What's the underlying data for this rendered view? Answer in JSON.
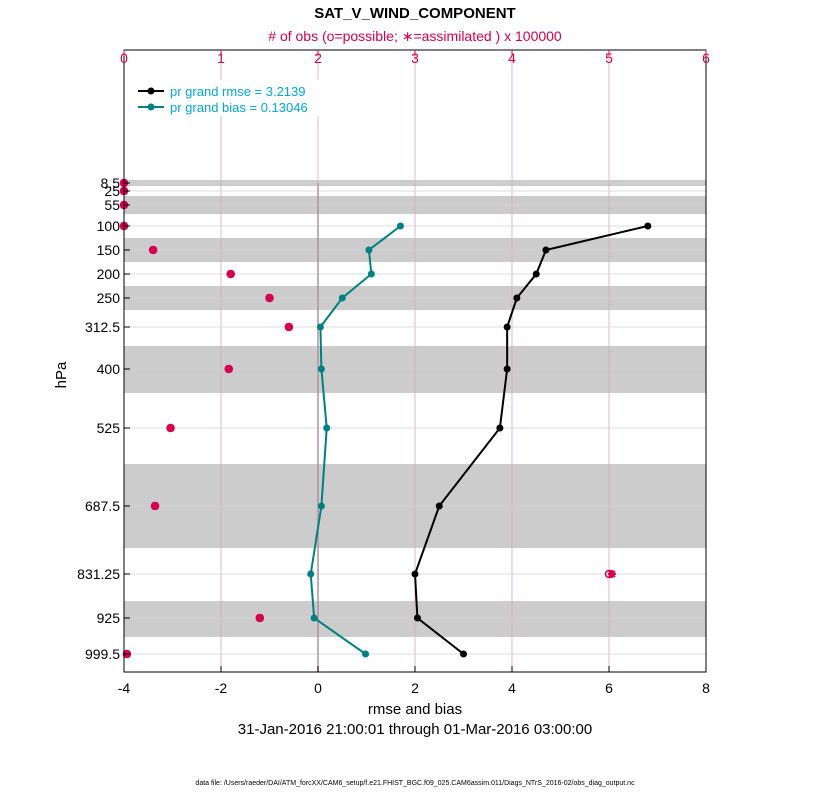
{
  "chart_data": {
    "type": "line",
    "title": "SAT_V_WIND_COMPONENT",
    "top_axis_label": "# of obs (o=possible; ∗=assimilated ) x 100000",
    "xlabel": "rmse and bias",
    "ylabel": "hPa",
    "date_range": "31-Jan-2016 21:00:01 through 01-Mar-2016 03:00:00",
    "data_file": "data file: /Users/raeder/DAI/ATM_forcXX/CAM6_setup/f.e21.FHIST_BGC.f09_025.CAM6assim.011/Diags_NTrS_2016-02/obs_diag_output.nc",
    "xlim": [
      -4,
      8
    ],
    "x_ticks": [
      "-4",
      "-2",
      "0",
      "2",
      "4",
      "6",
      "8"
    ],
    "top_xlim": [
      0,
      6
    ],
    "top_ticks": [
      "0",
      "1",
      "2",
      "3",
      "4",
      "5",
      "6"
    ],
    "y_tick_labels": [
      "8.5",
      "25",
      "55",
      "100",
      "150",
      "200",
      "250",
      "312.5",
      "400",
      "525",
      "687.5",
      "831.25",
      "925",
      "999.5"
    ],
    "levels": [
      8.5,
      25,
      55,
      100,
      150,
      200,
      250,
      312.5,
      400,
      525,
      687.5,
      831.25,
      925,
      999.5
    ],
    "series": [
      {
        "name": "pr grand rmse = 3.2139",
        "color": "#000000",
        "levels": [
          100,
          150,
          200,
          250,
          312.5,
          400,
          525,
          687.5,
          831.25,
          925,
          999.5
        ],
        "values": [
          6.8,
          4.7,
          4.5,
          4.1,
          3.9,
          3.9,
          3.75,
          2.5,
          2.0,
          2.05,
          3.0
        ]
      },
      {
        "name": "pr grand bias = 0.13046",
        "color": "#008080",
        "levels": [
          100,
          150,
          200,
          250,
          312.5,
          400,
          525,
          687.5,
          831.25,
          925,
          999.5
        ],
        "values": [
          1.7,
          1.05,
          1.1,
          0.5,
          0.05,
          0.07,
          0.18,
          0.07,
          -0.15,
          -0.08,
          0.98
        ]
      }
    ],
    "obs_count": {
      "name": "# of obs (x 100000)",
      "color": "#d6004e",
      "levels": [
        8.5,
        25,
        55,
        100,
        150,
        200,
        250,
        312.5,
        400,
        525,
        687.5,
        831.25,
        925,
        999.5
      ],
      "possible": [
        0.0,
        0.0,
        0.0,
        0.0,
        0.3,
        1.1,
        1.5,
        1.7,
        1.08,
        0.48,
        0.32,
        5.0,
        1.4,
        0.03
      ],
      "assimilated": [
        0.0,
        0.0,
        0.0,
        0.0,
        0.3,
        1.1,
        1.5,
        1.7,
        1.08,
        0.48,
        0.32,
        5.03,
        1.4,
        0.03
      ]
    },
    "legend": [
      "pr grand rmse = 3.2139",
      "pr grand bias = 0.13046"
    ],
    "legend_position": "top-left",
    "grid": true,
    "y_axis": "pressure, decreasing upward"
  }
}
